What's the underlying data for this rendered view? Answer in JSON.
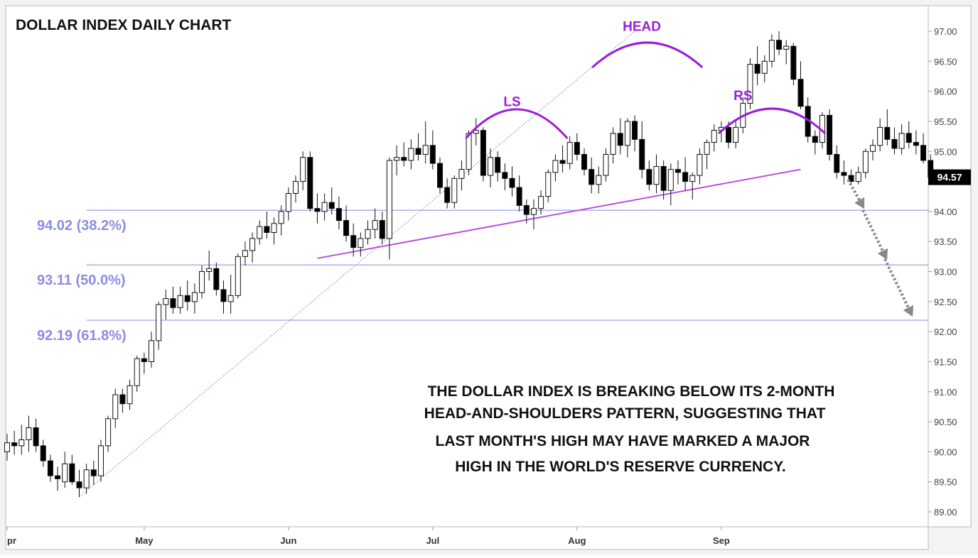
{
  "chart_data": {
    "type": "candlestick",
    "title": "DOLLAR INDEX DAILY CHART",
    "ylim": [
      88.75,
      97.4
    ],
    "y_ticks": [
      "97.00",
      "96.50",
      "96.00",
      "95.50",
      "95.00",
      "94.50",
      "94.00",
      "93.50",
      "93.00",
      "92.50",
      "92.00",
      "91.50",
      "91.00",
      "90.50",
      "90.00",
      "89.50",
      "89.00"
    ],
    "y_tick_values": [
      97.0,
      96.5,
      96.0,
      95.5,
      95.0,
      94.5,
      94.0,
      93.5,
      93.0,
      92.5,
      92.0,
      91.5,
      91.0,
      90.5,
      90.0,
      89.5,
      89.0
    ],
    "x_ticks": [
      "pr",
      "May",
      "Jun",
      "Jul",
      "Aug",
      "Sep"
    ],
    "x_tick_bars": [
      0,
      19,
      39,
      59,
      79,
      99
    ],
    "last_price": "94.57",
    "last_price_value": 94.57,
    "fib_levels": [
      {
        "value": 94.02,
        "label": "94.02 (38.2%)"
      },
      {
        "value": 93.11,
        "label": "93.11 (50.0%)"
      },
      {
        "value": 92.19,
        "label": "92.19 (61.8%)"
      }
    ],
    "pattern_labels": [
      {
        "text": "LS",
        "bar": 70,
        "value": 95.85
      },
      {
        "text": "HEAD",
        "bar": 87,
        "value": 97.1
      },
      {
        "text": "RS",
        "bar": 102,
        "value": 95.95
      }
    ],
    "neckline": {
      "from": {
        "bar": 43,
        "value": 93.22
      },
      "to": {
        "bar": 110,
        "value": 94.7
      }
    },
    "trendline": {
      "from": {
        "bar": 10,
        "value": 89.25
      },
      "to": {
        "bar": 87,
        "value": 97.0
      }
    },
    "projection": [
      {
        "bar": 107,
        "value": 94.5
      },
      {
        "bar": 111,
        "value": 93.1
      },
      {
        "bar": 114,
        "value": 92.2
      }
    ],
    "annotation": [
      "THE DOLLAR INDEX IS BREAKING BELOW ITS 2-MONTH",
      "HEAD-AND-SHOULDERS PATTERN, SUGGESTING THAT",
      "LAST MONTH'S HIGH MAY HAVE MARKED A MAJOR",
      "HIGH IN THE WORLD'S RESERVE CURRENCY."
    ],
    "candles_ohlc": [
      [
        90.0,
        90.3,
        89.85,
        90.15
      ],
      [
        90.15,
        90.35,
        89.95,
        90.1
      ],
      [
        90.1,
        90.45,
        89.95,
        90.2
      ],
      [
        90.2,
        90.6,
        90.0,
        90.4
      ],
      [
        90.4,
        90.55,
        90.0,
        90.1
      ],
      [
        90.1,
        90.2,
        89.75,
        89.85
      ],
      [
        89.85,
        89.95,
        89.5,
        89.6
      ],
      [
        89.6,
        89.75,
        89.35,
        89.55
      ],
      [
        89.5,
        90.0,
        89.4,
        89.8
      ],
      [
        89.8,
        89.95,
        89.45,
        89.5
      ],
      [
        89.5,
        89.7,
        89.25,
        89.4
      ],
      [
        89.4,
        89.8,
        89.3,
        89.7
      ],
      [
        89.7,
        89.85,
        89.45,
        89.6
      ],
      [
        89.6,
        90.2,
        89.5,
        90.1
      ],
      [
        90.1,
        90.6,
        90.0,
        90.55
      ],
      [
        90.55,
        91.05,
        90.4,
        90.95
      ],
      [
        90.95,
        91.05,
        90.65,
        90.8
      ],
      [
        90.8,
        91.2,
        90.7,
        91.1
      ],
      [
        91.1,
        91.6,
        91.0,
        91.55
      ],
      [
        91.55,
        91.65,
        91.3,
        91.5
      ],
      [
        91.5,
        92.0,
        91.4,
        91.85
      ],
      [
        91.85,
        92.5,
        91.7,
        92.45
      ],
      [
        92.45,
        92.7,
        92.2,
        92.55
      ],
      [
        92.55,
        92.75,
        92.3,
        92.4
      ],
      [
        92.4,
        92.75,
        92.3,
        92.6
      ],
      [
        92.6,
        92.85,
        92.35,
        92.5
      ],
      [
        92.5,
        92.8,
        92.3,
        92.65
      ],
      [
        92.65,
        93.1,
        92.55,
        93.0
      ],
      [
        93.0,
        93.35,
        92.85,
        93.05
      ],
      [
        93.05,
        93.15,
        92.6,
        92.7
      ],
      [
        92.7,
        92.85,
        92.3,
        92.5
      ],
      [
        92.5,
        92.95,
        92.3,
        92.6
      ],
      [
        92.6,
        93.3,
        92.55,
        93.25
      ],
      [
        93.25,
        93.5,
        93.1,
        93.35
      ],
      [
        93.35,
        93.65,
        93.15,
        93.55
      ],
      [
        93.55,
        93.85,
        93.45,
        93.75
      ],
      [
        93.75,
        94.0,
        93.55,
        93.65
      ],
      [
        93.65,
        93.9,
        93.45,
        93.8
      ],
      [
        93.8,
        94.1,
        93.6,
        94.0
      ],
      [
        94.0,
        94.4,
        93.85,
        94.3
      ],
      [
        94.3,
        94.6,
        94.15,
        94.5
      ],
      [
        94.5,
        95.0,
        94.35,
        94.9
      ],
      [
        94.9,
        95.0,
        94.0,
        94.05
      ],
      [
        94.05,
        94.3,
        93.8,
        94.0
      ],
      [
        94.0,
        94.3,
        93.85,
        94.15
      ],
      [
        94.15,
        94.4,
        93.95,
        94.05
      ],
      [
        94.05,
        94.25,
        93.7,
        93.85
      ],
      [
        93.85,
        94.1,
        93.5,
        93.6
      ],
      [
        93.6,
        93.8,
        93.25,
        93.4
      ],
      [
        93.4,
        93.65,
        93.25,
        93.55
      ],
      [
        93.55,
        93.85,
        93.45,
        93.7
      ],
      [
        93.7,
        94.05,
        93.55,
        93.85
      ],
      [
        93.85,
        94.0,
        93.45,
        93.55
      ],
      [
        93.55,
        94.9,
        93.2,
        94.85
      ],
      [
        94.85,
        95.1,
        94.6,
        94.9
      ],
      [
        94.9,
        95.15,
        94.75,
        94.85
      ],
      [
        94.85,
        95.2,
        94.7,
        95.05
      ],
      [
        95.05,
        95.3,
        94.85,
        94.95
      ],
      [
        94.95,
        95.5,
        94.8,
        95.1
      ],
      [
        95.1,
        95.35,
        94.7,
        94.8
      ],
      [
        94.8,
        94.9,
        94.3,
        94.4
      ],
      [
        94.4,
        94.55,
        94.05,
        94.15
      ],
      [
        94.15,
        94.6,
        94.05,
        94.55
      ],
      [
        94.55,
        94.85,
        94.35,
        94.7
      ],
      [
        94.7,
        95.35,
        94.6,
        95.3
      ],
      [
        95.3,
        95.55,
        95.1,
        95.35
      ],
      [
        95.35,
        95.4,
        94.5,
        94.6
      ],
      [
        94.6,
        95.05,
        94.4,
        94.9
      ],
      [
        94.9,
        95.0,
        94.5,
        94.65
      ],
      [
        94.65,
        94.8,
        94.35,
        94.55
      ],
      [
        94.55,
        94.75,
        94.25,
        94.4
      ],
      [
        94.4,
        94.6,
        94.0,
        94.1
      ],
      [
        94.1,
        94.2,
        93.8,
        93.95
      ],
      [
        93.95,
        94.2,
        93.7,
        94.05
      ],
      [
        94.05,
        94.35,
        93.95,
        94.25
      ],
      [
        94.25,
        94.7,
        94.15,
        94.65
      ],
      [
        94.65,
        94.95,
        94.5,
        94.85
      ],
      [
        94.85,
        95.1,
        94.65,
        94.8
      ],
      [
        94.8,
        95.25,
        94.7,
        95.15
      ],
      [
        95.15,
        95.3,
        94.85,
        94.95
      ],
      [
        94.95,
        95.05,
        94.6,
        94.7
      ],
      [
        94.7,
        94.9,
        94.3,
        94.45
      ],
      [
        94.45,
        94.75,
        94.3,
        94.6
      ],
      [
        94.6,
        95.05,
        94.5,
        94.95
      ],
      [
        94.95,
        95.4,
        94.8,
        95.3
      ],
      [
        95.3,
        95.55,
        94.95,
        95.1
      ],
      [
        95.1,
        95.55,
        94.9,
        95.5
      ],
      [
        95.5,
        95.6,
        95.0,
        95.2
      ],
      [
        95.2,
        95.5,
        94.55,
        94.7
      ],
      [
        94.7,
        94.85,
        94.35,
        94.45
      ],
      [
        94.45,
        94.95,
        94.3,
        94.75
      ],
      [
        94.75,
        94.85,
        94.2,
        94.35
      ],
      [
        94.35,
        94.8,
        94.1,
        94.7
      ],
      [
        94.7,
        94.85,
        94.45,
        94.65
      ],
      [
        94.65,
        94.9,
        94.35,
        94.5
      ],
      [
        94.5,
        94.65,
        94.2,
        94.6
      ],
      [
        94.6,
        95.05,
        94.45,
        94.95
      ],
      [
        94.95,
        95.2,
        94.7,
        95.15
      ],
      [
        95.15,
        95.45,
        95.0,
        95.35
      ],
      [
        95.35,
        95.5,
        95.15,
        95.4
      ],
      [
        95.4,
        95.5,
        95.05,
        95.15
      ],
      [
        95.15,
        95.5,
        95.05,
        95.4
      ],
      [
        95.4,
        95.9,
        95.3,
        95.8
      ],
      [
        95.8,
        96.55,
        95.7,
        96.45
      ],
      [
        96.45,
        96.75,
        96.1,
        96.3
      ],
      [
        96.3,
        96.6,
        96.15,
        96.5
      ],
      [
        96.5,
        96.95,
        96.4,
        96.85
      ],
      [
        96.85,
        97.0,
        96.6,
        96.7
      ],
      [
        96.7,
        96.85,
        96.45,
        96.75
      ],
      [
        96.75,
        96.8,
        96.1,
        96.2
      ],
      [
        96.2,
        96.5,
        95.7,
        95.75
      ],
      [
        95.75,
        95.9,
        95.15,
        95.25
      ],
      [
        95.25,
        95.35,
        94.95,
        95.15
      ],
      [
        95.15,
        95.65,
        95.05,
        95.6
      ],
      [
        95.6,
        95.7,
        94.85,
        94.95
      ],
      [
        94.95,
        95.1,
        94.55,
        94.65
      ],
      [
        94.65,
        94.85,
        94.45,
        94.6
      ],
      [
        94.6,
        94.7,
        94.45,
        94.5
      ],
      [
        94.5,
        94.75,
        94.45,
        94.65
      ],
      [
        94.65,
        95.05,
        94.55,
        95.0
      ],
      [
        95.0,
        95.2,
        94.85,
        95.1
      ],
      [
        95.1,
        95.55,
        95.0,
        95.4
      ],
      [
        95.4,
        95.7,
        95.1,
        95.2
      ],
      [
        95.2,
        95.4,
        94.95,
        95.05
      ],
      [
        95.05,
        95.45,
        94.95,
        95.3
      ],
      [
        95.3,
        95.5,
        95.05,
        95.15
      ],
      [
        95.15,
        95.35,
        94.95,
        95.1
      ],
      [
        95.1,
        95.3,
        94.8,
        94.85
      ],
      [
        94.85,
        94.95,
        94.5,
        94.57
      ]
    ]
  }
}
